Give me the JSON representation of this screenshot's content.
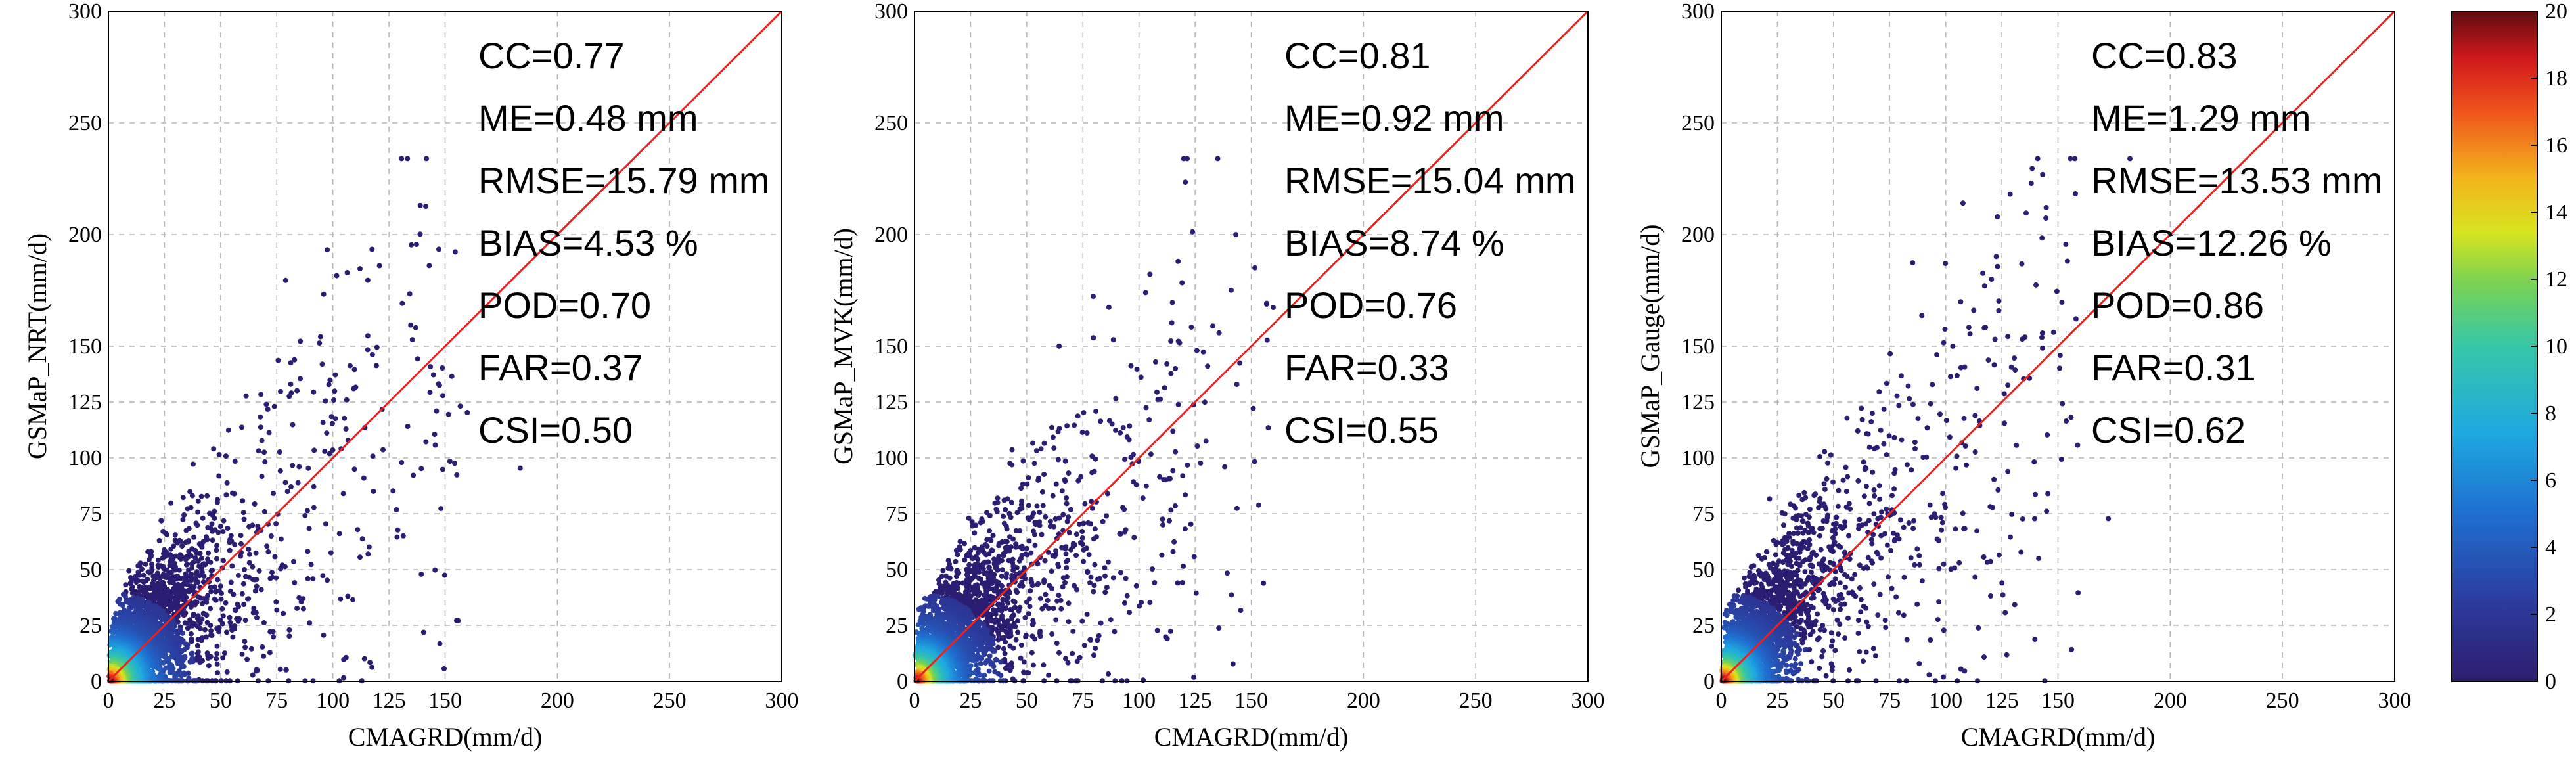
{
  "chart_data": [
    {
      "type": "scatter",
      "title": "",
      "xlabel": "CMAGRD(mm/d)",
      "ylabel": "GSMaP_NRT(mm/d)",
      "xlim": [
        0,
        300
      ],
      "ylim": [
        0,
        300
      ],
      "xticks": [
        "0",
        "25",
        "50",
        "75",
        "100",
        "125",
        "150",
        "200",
        "250",
        "300"
      ],
      "yticks": [
        "0",
        "25",
        "50",
        "75",
        "100",
        "125",
        "150",
        "200",
        "250",
        "300"
      ],
      "grid": true,
      "reference_line": "1:1",
      "color_encoding": "point density",
      "stats": [
        "CC=0.77",
        "ME=0.48 mm",
        "RMSE=15.79 mm",
        "BIAS=4.53 %",
        "POD=0.70",
        "FAR=0.37",
        "CSI=0.50"
      ],
      "slope": 0.8,
      "spread": 1.0
    },
    {
      "type": "scatter",
      "title": "",
      "xlabel": "CMAGRD(mm/d)",
      "ylabel": "GSMaP_MVK(mm/d)",
      "xlim": [
        0,
        300
      ],
      "ylim": [
        0,
        300
      ],
      "xticks": [
        "0",
        "25",
        "50",
        "75",
        "100",
        "125",
        "150",
        "200",
        "250",
        "300"
      ],
      "yticks": [
        "0",
        "25",
        "50",
        "75",
        "100",
        "125",
        "150",
        "200",
        "250",
        "300"
      ],
      "grid": true,
      "reference_line": "1:1",
      "color_encoding": "point density",
      "stats": [
        "CC=0.81",
        "ME=0.92 mm",
        "RMSE=15.04 mm",
        "BIAS=8.74 %",
        "POD=0.76",
        "FAR=0.33",
        "CSI=0.55"
      ],
      "slope": 0.85,
      "spread": 0.9
    },
    {
      "type": "scatter",
      "title": "",
      "xlabel": "CMAGRD(mm/d)",
      "ylabel": "GSMaP_Gauge(mm/d)",
      "xlim": [
        0,
        300
      ],
      "ylim": [
        0,
        300
      ],
      "xticks": [
        "0",
        "25",
        "50",
        "75",
        "100",
        "125",
        "150",
        "200",
        "250",
        "300"
      ],
      "yticks": [
        "0",
        "25",
        "50",
        "75",
        "100",
        "125",
        "150",
        "200",
        "250",
        "300"
      ],
      "grid": true,
      "reference_line": "1:1",
      "color_encoding": "point density",
      "stats": [
        "CC=0.83",
        "ME=1.29 mm",
        "RMSE=13.53 mm",
        "BIAS=12.26 %",
        "POD=0.86",
        "FAR=0.31",
        "CSI=0.62"
      ],
      "slope": 0.95,
      "spread": 0.8
    }
  ],
  "colorbar": {
    "min": 0,
    "max": 20,
    "ticks": [
      "0",
      "2",
      "4",
      "6",
      "8",
      "10",
      "12",
      "14",
      "16",
      "18",
      "20"
    ],
    "colormap": "jet"
  },
  "colors": {
    "reference_line": "#e8231f",
    "grid": "#b5b5b5",
    "low_density": "#2b1d72"
  }
}
